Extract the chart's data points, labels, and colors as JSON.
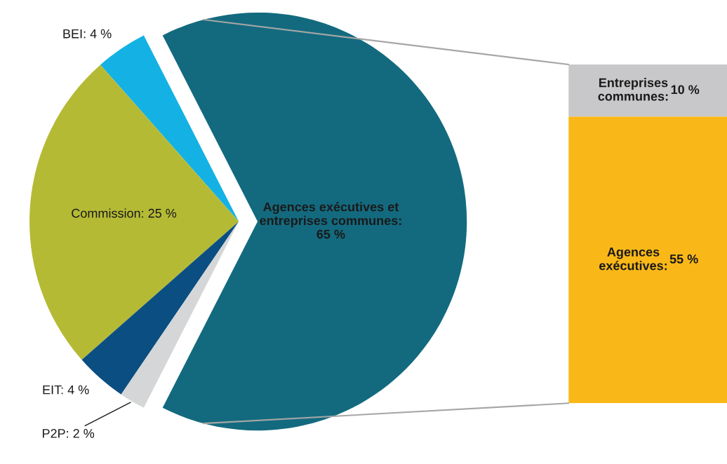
{
  "chart_data": [
    {
      "type": "pie",
      "categories": [
        "Agences exécutives et\nentreprises communes:\n65 %",
        "BEI: 4 %",
        "Commission: 25 %",
        "EIT: 4 %",
        "P2P: 2 %"
      ],
      "values": [
        65,
        4,
        25,
        4,
        2
      ],
      "colors": [
        "#136a7f",
        "#14b1e4",
        "#b5ba35",
        "#0b4f82",
        "#d5d6d7"
      ]
    },
    {
      "type": "bar",
      "stacked": true,
      "categories": [
        null
      ],
      "series": [
        {
          "name": "Agences\nexécutives:",
          "color": "#fab818",
          "values": [
            55
          ],
          "value_labels": [
            "55 %"
          ]
        },
        {
          "name": "Entreprises\ncommunes:",
          "color": "#c8c8ca",
          "values": [
            10
          ],
          "value_labels": [
            "10 %"
          ]
        }
      ]
    }
  ]
}
